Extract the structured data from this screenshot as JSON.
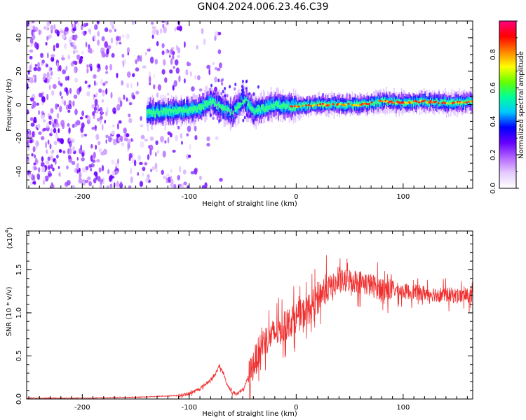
{
  "title": "GN04.2024.006.23.46.C39",
  "chart_data": [
    {
      "type": "heatmap",
      "name": "spectrogram",
      "xlabel": "Height of straight line (km)",
      "ylabel": "Frequency (Hz)",
      "xlim": [
        -252,
        165
      ],
      "ylim": [
        -50,
        50
      ],
      "xticks": [
        -200,
        -100,
        0,
        100
      ],
      "xtick_labels": [
        "-200",
        "-100",
        "0",
        "100"
      ],
      "yticks": [
        -40,
        -20,
        0,
        20,
        40
      ],
      "ytick_labels": [
        "-40",
        "-20",
        "0",
        "20",
        "40"
      ],
      "colorbar": {
        "label": "Normalized spectral amplitude",
        "range": [
          0,
          1
        ],
        "ticks": [
          0.0,
          0.2,
          0.4,
          0.6,
          0.8
        ],
        "tick_labels": [
          "0.0",
          "0.2",
          "0.4",
          "0.6",
          "0.8"
        ],
        "colors": [
          "#ffffff",
          "#e6ccff",
          "#b366ff",
          "#6600ff",
          "#0000ff",
          "#00c8ff",
          "#00ff99",
          "#66ff00",
          "#ffff00",
          "#ff8000",
          "#ff0000",
          "#ff0080"
        ]
      },
      "ridge": {
        "x": [
          -140,
          -120,
          -100,
          -90,
          -80,
          -70,
          -60,
          -50,
          -40,
          -30,
          -20,
          -10,
          0,
          20,
          40,
          60,
          80,
          100,
          120,
          140,
          165
        ],
        "freq": [
          -5,
          -4,
          -3,
          -2,
          2,
          -2,
          -5,
          3,
          -4,
          -2,
          0,
          -1,
          -1,
          0,
          0,
          0,
          2,
          1,
          2,
          1,
          2
        ]
      },
      "noise_region_x": [
        -252,
        -100
      ]
    },
    {
      "type": "line",
      "name": "snr",
      "xlabel": "Height of straight line (km)",
      "ylabel": "SNR (10 * v/v)",
      "scale_label": "(x10",
      "scale_exponent": "4",
      "xlim": [
        -252,
        165
      ],
      "ylim": [
        0,
        1.95
      ],
      "xticks": [
        -200,
        -100,
        0,
        100
      ],
      "xtick_labels": [
        "-200",
        "-100",
        "0",
        "100"
      ],
      "yticks": [
        0.0,
        0.5,
        1.0,
        1.5
      ],
      "ytick_labels": [
        "0.0",
        "0.5",
        "1.0",
        "1.5"
      ],
      "line_color": "#f03030",
      "series": [
        {
          "name": "SNR",
          "x": [
            -252,
            -200,
            -150,
            -110,
            -100,
            -90,
            -80,
            -75,
            -72,
            -68,
            -65,
            -60,
            -55,
            -50,
            -45,
            -40,
            -35,
            -30,
            -25,
            -20,
            -15,
            -10,
            -5,
            0,
            5,
            10,
            15,
            20,
            25,
            30,
            35,
            40,
            45,
            50,
            55,
            60,
            65,
            70,
            75,
            80,
            90,
            100,
            110,
            120,
            130,
            140,
            150,
            165
          ],
          "values": [
            0.01,
            0.01,
            0.02,
            0.04,
            0.06,
            0.12,
            0.22,
            0.3,
            0.38,
            0.3,
            0.18,
            0.08,
            0.06,
            0.1,
            0.25,
            0.4,
            0.55,
            0.68,
            0.72,
            0.76,
            0.8,
            0.85,
            0.9,
            0.95,
            0.98,
            1.02,
            1.08,
            1.18,
            1.25,
            1.3,
            1.32,
            1.35,
            1.36,
            1.38,
            1.37,
            1.36,
            1.34,
            1.32,
            1.3,
            1.28,
            1.27,
            1.25,
            1.24,
            1.23,
            1.22,
            1.21,
            1.2,
            1.19
          ]
        }
      ]
    }
  ]
}
